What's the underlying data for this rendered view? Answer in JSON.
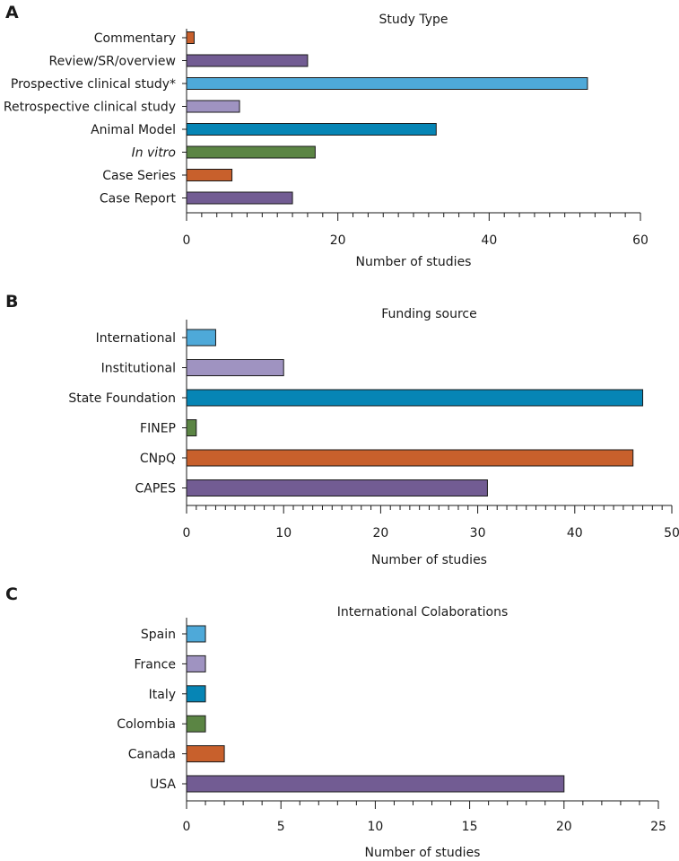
{
  "chart_data": [
    {
      "panel": "A",
      "type": "bar",
      "orientation": "horizontal",
      "title": "Study Type",
      "xlabel": "Number of studies",
      "ylabel": "",
      "xlim": [
        0,
        60
      ],
      "major_ticks": [
        0,
        20,
        40,
        60
      ],
      "minor_step": 2,
      "categories": [
        "Commentary",
        "Review/SR/overview",
        "Prospective clinical study*",
        "Retrospective clinical study",
        "Animal Model",
        "In vitro",
        "Case Series",
        "Case Report"
      ],
      "italic_categories": [
        "In vitro"
      ],
      "values": [
        1,
        16,
        53,
        7,
        33,
        17,
        6,
        14
      ],
      "colors": [
        "#c8602c",
        "#725c93",
        "#4ea9d9",
        "#9f93c1",
        "#0685b5",
        "#5b8544",
        "#c8602c",
        "#725c93"
      ]
    },
    {
      "panel": "B",
      "type": "bar",
      "orientation": "horizontal",
      "title": "Funding source",
      "xlabel": "Number of studies",
      "ylabel": "",
      "xlim": [
        0,
        50
      ],
      "major_ticks": [
        0,
        10,
        20,
        30,
        40,
        50
      ],
      "minor_step": 1,
      "categories": [
        "International",
        "Institutional",
        "State Foundation",
        "FINEP",
        "CNpQ",
        "CAPES"
      ],
      "italic_categories": [],
      "values": [
        3,
        10,
        47,
        1,
        46,
        31
      ],
      "colors": [
        "#4ea9d9",
        "#9f93c1",
        "#0685b5",
        "#5b8544",
        "#c8602c",
        "#725c93"
      ]
    },
    {
      "panel": "C",
      "type": "bar",
      "orientation": "horizontal",
      "title": "International Colaborations",
      "xlabel": "Number of studies",
      "ylabel": "",
      "xlim": [
        0,
        25
      ],
      "major_ticks": [
        0,
        5,
        10,
        15,
        20,
        25
      ],
      "minor_step": 1,
      "categories": [
        "Spain",
        "France",
        "Italy",
        "Colombia",
        "Canada",
        "USA"
      ],
      "italic_categories": [],
      "values": [
        1,
        1,
        1,
        1,
        2,
        20
      ],
      "colors": [
        "#4ea9d9",
        "#9f93c1",
        "#0685b5",
        "#5b8544",
        "#c8602c",
        "#725c93"
      ]
    }
  ]
}
